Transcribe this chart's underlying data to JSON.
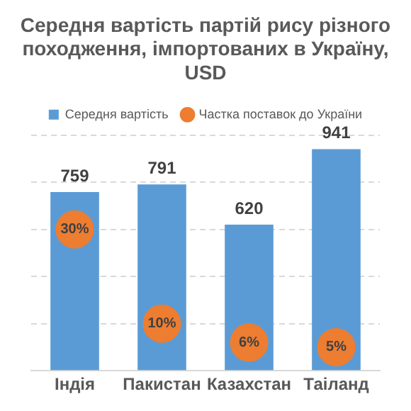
{
  "chart_data": {
    "type": "bar",
    "title": "Середня вартість партій рису різного походження, імпортованих в Україну, USD",
    "categories": [
      "Індія",
      "Пакистан",
      "Казахстан",
      "Таіланд"
    ],
    "series": [
      {
        "name": "Середня вартість",
        "color": "#5b9bd5",
        "values": [
          759,
          791,
          620,
          941
        ],
        "value_labels": [
          "759",
          "791",
          "620",
          "941"
        ]
      },
      {
        "name": "Частка поставок до України",
        "type": "scatter",
        "axis": "y2",
        "color": "#ed7d31",
        "marker": "circle",
        "x": [
          "Індія",
          "Пакистан",
          "Казахстан",
          "Таіланд"
        ],
        "values": [
          30,
          10,
          6,
          5
        ],
        "value_labels": [
          "30%",
          "10%",
          "6%",
          "5%"
        ]
      }
    ],
    "ylim": [
      0,
      1000
    ],
    "yticks": [
      {
        "value": 0,
        "label": null
      },
      {
        "value": 200,
        "label": null
      },
      {
        "value": 400,
        "label": null
      },
      {
        "value": 600,
        "label": null
      },
      {
        "value": 800,
        "label": null
      },
      {
        "value": 1000,
        "label": null
      }
    ],
    "y2lim": [
      0,
      50
    ],
    "grid": "y",
    "legend": "top",
    "tick_labels": "x"
  }
}
